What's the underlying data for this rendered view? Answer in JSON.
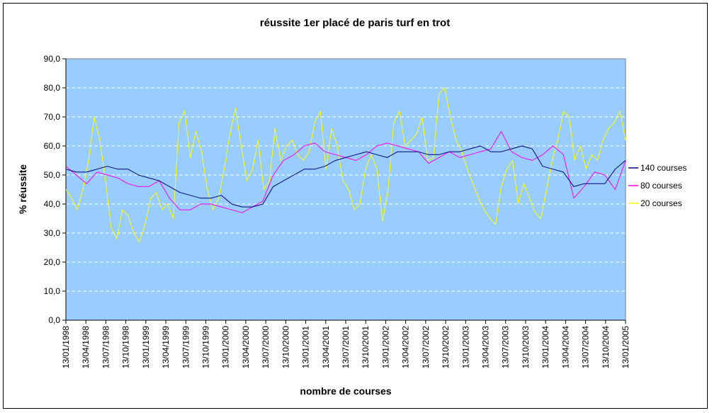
{
  "chart_data": {
    "type": "line",
    "title": "réussite 1er placé de paris turf en trot",
    "xlabel": "nombre de courses",
    "ylabel": "% réussite",
    "ylim": [
      0,
      90
    ],
    "y_ticks": [
      "0,0",
      "10,0",
      "20,0",
      "30,0",
      "40,0",
      "50,0",
      "60,0",
      "70,0",
      "80,0",
      "90,0"
    ],
    "x_tick_labels": [
      "13/01/1998",
      "13/04/1998",
      "13/07/1998",
      "13/10/1998",
      "13/01/1999",
      "13/04/1999",
      "13/07/1999",
      "13/10/1999",
      "13/01/2000",
      "13/04/2000",
      "13/07/2000",
      "13/10/2000",
      "13/01/2001",
      "13/04/2001",
      "13/07/2001",
      "13/10/2001",
      "13/01/2002",
      "13/04/2002",
      "13/07/2002",
      "13/10/2002",
      "13/01/2003",
      "13/04/2003",
      "13/07/2003",
      "13/10/2003",
      "13/01/2004",
      "13/04/2004",
      "13/07/2004",
      "13/10/2004",
      "13/01/2005"
    ],
    "grid": "horizontal",
    "legend_position": "right",
    "plot_background": "#99CCFF",
    "series": [
      {
        "name": "140 courses",
        "color": "#000080",
        "values": [
          52,
          51,
          51,
          52,
          53,
          52,
          52,
          50,
          49,
          48,
          46,
          44,
          43,
          42,
          42,
          43,
          40,
          39,
          39,
          40,
          46,
          48,
          50,
          52,
          52,
          53,
          55,
          56,
          57,
          58,
          57,
          56,
          58,
          58,
          58,
          57,
          57,
          58,
          58,
          59,
          60,
          58,
          58,
          59,
          60,
          59,
          53,
          52,
          51,
          46,
          47,
          47,
          47,
          52,
          55
        ]
      },
      {
        "name": "80 courses",
        "color": "#FF00FF",
        "values": [
          53,
          50,
          47,
          51,
          50,
          49,
          47,
          46,
          46,
          48,
          42,
          38,
          38,
          40,
          40,
          39,
          38,
          37,
          39,
          41,
          50,
          55,
          57,
          60,
          61,
          58,
          57,
          56,
          55,
          57,
          60,
          61,
          60,
          59,
          58,
          54,
          56,
          58,
          56,
          57,
          58,
          59,
          65,
          58,
          56,
          55,
          57,
          60,
          57,
          42,
          46,
          51,
          50,
          45,
          55
        ]
      },
      {
        "name": "20 courses",
        "color": "#FFFF00",
        "values": [
          45,
          42,
          38,
          45,
          55,
          70,
          62,
          48,
          32,
          28,
          38,
          36,
          30,
          27,
          33,
          42,
          44,
          38,
          40,
          35,
          68,
          72,
          56,
          65,
          58,
          45,
          38,
          42,
          52,
          64,
          73,
          60,
          48,
          52,
          62,
          45,
          48,
          66,
          55,
          60,
          62,
          57,
          55,
          58,
          68,
          72,
          52,
          66,
          60,
          48,
          45,
          38,
          40,
          52,
          57,
          52,
          34,
          45,
          68,
          72,
          60,
          62,
          64,
          70,
          55,
          56,
          78,
          80,
          70,
          62,
          58,
          52,
          47,
          42,
          38,
          35,
          33,
          46,
          52,
          55,
          40,
          47,
          42,
          37,
          35,
          45,
          55,
          62,
          72,
          70,
          55,
          60,
          52,
          57,
          55,
          62,
          66,
          68,
          72,
          62
        ]
      }
    ]
  }
}
